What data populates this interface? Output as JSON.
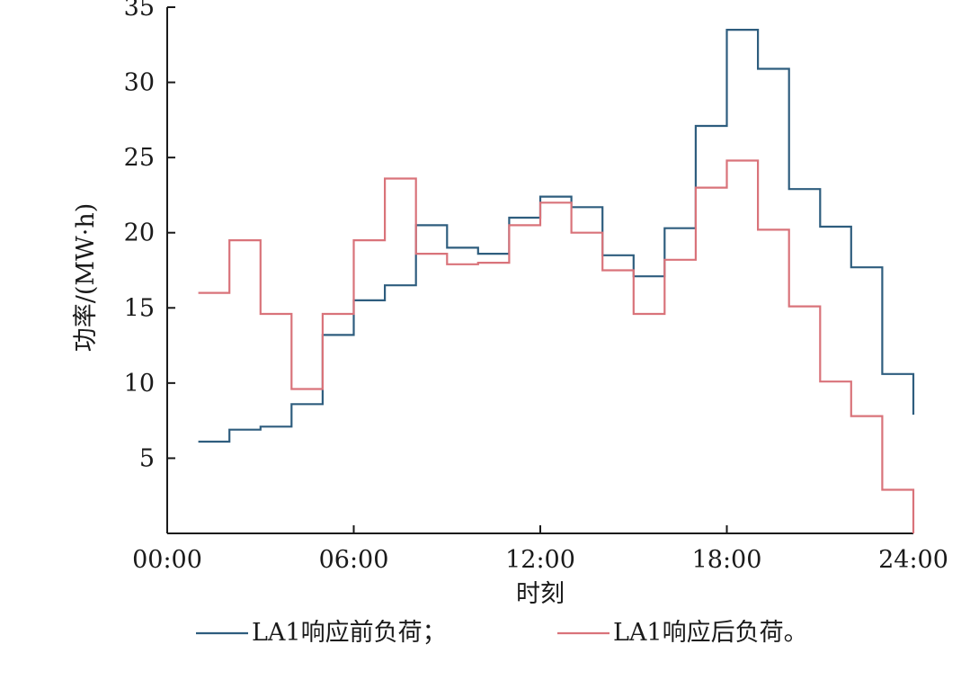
{
  "chart_data": {
    "type": "line",
    "step": true,
    "xlabel": "时刻",
    "ylabel": "功率/(MW·h)",
    "x_ticks": [
      "00:00",
      "06:00",
      "12:00",
      "18:00",
      "24:00"
    ],
    "y_ticks": [
      "5",
      "10",
      "15",
      "20",
      "25",
      "30",
      "35"
    ],
    "xlim": [
      0,
      24
    ],
    "ylim": [
      0,
      35
    ],
    "grid": false,
    "legend_position": "bottom",
    "x": [
      1,
      2,
      3,
      4,
      5,
      6,
      7,
      8,
      9,
      10,
      11,
      12,
      13,
      14,
      15,
      16,
      17,
      18,
      19,
      20,
      21,
      22,
      23
    ],
    "series": [
      {
        "name": "LA1响应前负荷；",
        "color": "#2e5d7e",
        "values": [
          6.1,
          6.9,
          7.1,
          8.6,
          13.2,
          15.5,
          16.5,
          20.5,
          19.0,
          18.6,
          21.0,
          22.4,
          21.7,
          18.5,
          17.1,
          20.3,
          27.1,
          33.5,
          30.9,
          22.9,
          20.4,
          17.7,
          10.6
        ],
        "end_value": 7.9
      },
      {
        "name": "LA1响应后负荷。",
        "color": "#d9737a",
        "values": [
          16.0,
          19.5,
          14.6,
          9.6,
          14.6,
          19.5,
          23.6,
          18.6,
          17.9,
          18.0,
          20.5,
          22.0,
          20.0,
          17.5,
          14.6,
          18.2,
          23.0,
          24.8,
          20.2,
          15.1,
          10.1,
          7.8,
          2.9
        ],
        "end_value": 0.0
      }
    ]
  }
}
